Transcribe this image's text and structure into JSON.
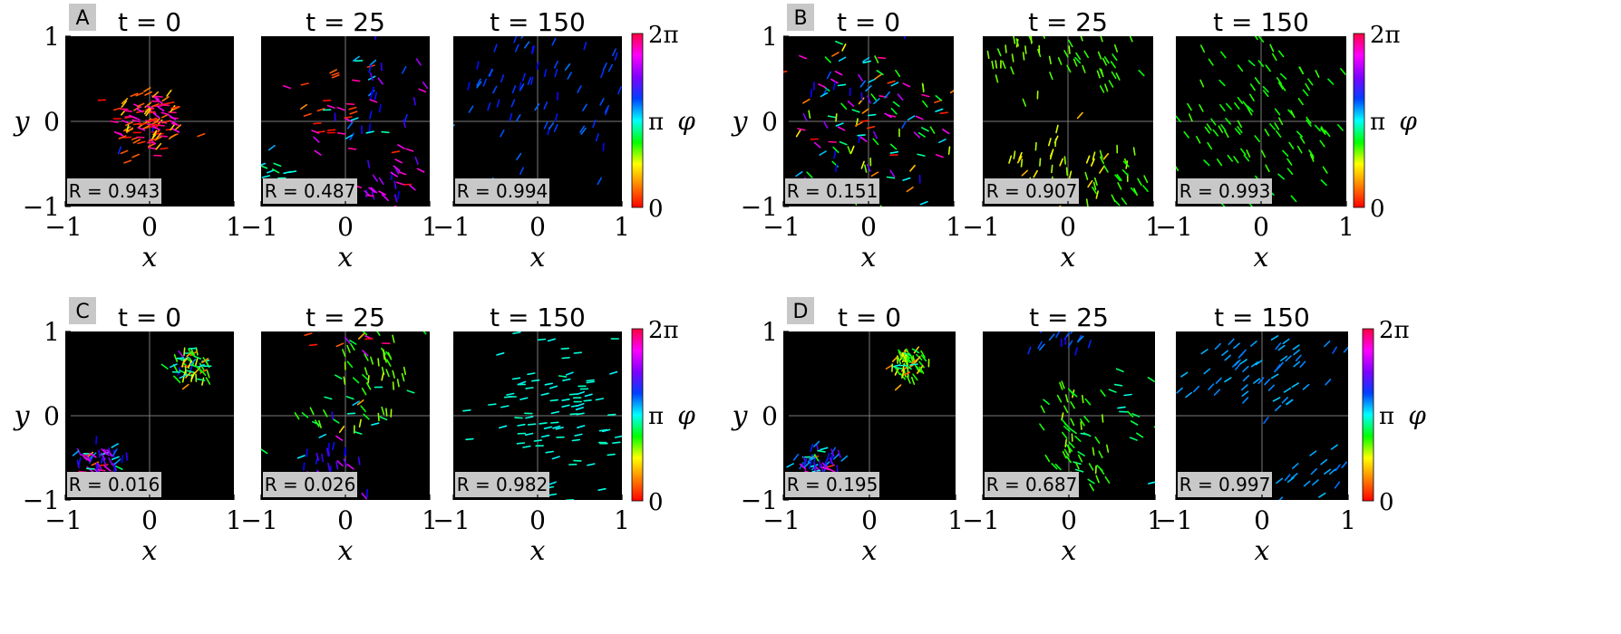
{
  "figure": {
    "colorbar": {
      "symbol": "φ",
      "ticks": [
        "0",
        "π",
        "2π"
      ],
      "stops": [
        "#ff0000",
        "#ff8000",
        "#ffff00",
        "#00ff00",
        "#00ffff",
        "#0040ff",
        "#8000ff",
        "#ff00ff",
        "#ff0040"
      ]
    }
  },
  "chart_data": [
    {
      "type": "scatter",
      "panel_label": "A",
      "xlabel": "x",
      "ylabel": "y",
      "xlim": [
        -1,
        1
      ],
      "ylim": [
        -1,
        1
      ],
      "xticks": [
        "−1",
        "0",
        "1"
      ],
      "yticks": [
        "1",
        "0",
        "−1"
      ],
      "grid": "crosshair at origin",
      "background": "#000000",
      "subplots": [
        {
          "title": "t = 0",
          "R_label": "R = 0.943",
          "R": 0.943,
          "pattern": "cluster",
          "clusters": [
            {
              "cx": 0.0,
              "cy": 0.0,
              "sx": 0.22,
              "sy": 0.22,
              "phase": 0.2,
              "phase_spread": 0.5,
              "n": 120
            }
          ]
        },
        {
          "title": "t = 25",
          "R_label": "R = 0.487",
          "R": 0.487,
          "pattern": "dispersed",
          "clusters": [
            {
              "cx": -0.2,
              "cy": 0.1,
              "sx": 0.2,
              "sy": 0.3,
              "phase": 0.1,
              "phase_spread": 0.3,
              "n": 25
            },
            {
              "cx": 0.4,
              "cy": 0.2,
              "sx": 0.3,
              "sy": 0.5,
              "phase": 4.6,
              "phase_spread": 0.8,
              "n": 45
            },
            {
              "cx": 0.6,
              "cy": -0.7,
              "sx": 0.25,
              "sy": 0.2,
              "phase": 5.6,
              "phase_spread": 0.4,
              "n": 25
            },
            {
              "cx": -0.8,
              "cy": -0.6,
              "sx": 0.12,
              "sy": 0.15,
              "phase": 3.2,
              "phase_spread": 0.3,
              "n": 18
            }
          ]
        },
        {
          "title": "t = 150",
          "R_label": "R = 0.994",
          "R": 0.994,
          "pattern": "band",
          "clusters": [
            {
              "cx": 0.1,
              "cy": 0.35,
              "sx": 0.8,
              "sy": 0.45,
              "phase": 4.3,
              "phase_spread": 0.15,
              "n": 90
            }
          ]
        }
      ]
    },
    {
      "type": "scatter",
      "panel_label": "B",
      "xlabel": "x",
      "ylabel": "y",
      "xlim": [
        -1,
        1
      ],
      "ylim": [
        -1,
        1
      ],
      "xticks": [
        "−1",
        "0",
        "1"
      ],
      "yticks": [
        "1",
        "0",
        "−1"
      ],
      "grid": "crosshair at origin",
      "background": "#000000",
      "subplots": [
        {
          "title": "t = 0",
          "R_label": "R = 0.151",
          "R": 0.151,
          "pattern": "uniform",
          "clusters": [
            {
              "cx": 0.0,
              "cy": 0.0,
              "sx": 0.6,
              "sy": 0.5,
              "phase": 3.14,
              "phase_spread": 3.14,
              "n": 140
            }
          ]
        },
        {
          "title": "t = 25",
          "R_label": "R = 0.907",
          "R": 0.907,
          "pattern": "patches",
          "clusters": [
            {
              "cx": -0.7,
              "cy": 0.7,
              "sx": 0.2,
              "sy": 0.2,
              "phase": 1.7,
              "phase_spread": 0.2,
              "n": 25
            },
            {
              "cx": 0.3,
              "cy": 0.7,
              "sx": 0.3,
              "sy": 0.2,
              "phase": 2.0,
              "phase_spread": 0.2,
              "n": 30
            },
            {
              "cx": -0.2,
              "cy": -0.5,
              "sx": 0.4,
              "sy": 0.25,
              "phase": 1.3,
              "phase_spread": 0.3,
              "n": 45
            },
            {
              "cx": 0.6,
              "cy": -0.7,
              "sx": 0.3,
              "sy": 0.2,
              "phase": 2.1,
              "phase_spread": 0.2,
              "n": 25
            }
          ]
        },
        {
          "title": "t = 150",
          "R_label": "R = 0.993",
          "R": 0.993,
          "pattern": "band",
          "clusters": [
            {
              "cx": 0.0,
              "cy": 0.0,
              "sx": 0.55,
              "sy": 0.6,
              "phase": 2.2,
              "phase_spread": 0.1,
              "n": 120
            }
          ]
        }
      ]
    },
    {
      "type": "scatter",
      "panel_label": "C",
      "xlabel": "x",
      "ylabel": "y",
      "xlim": [
        -1,
        1
      ],
      "ylim": [
        -1,
        1
      ],
      "xticks": [
        "−1",
        "0",
        "1"
      ],
      "yticks": [
        "1",
        "0",
        "−1"
      ],
      "grid": "crosshair at origin",
      "background": "#000000",
      "subplots": [
        {
          "title": "t = 0",
          "R_label": "R = 0.016",
          "R": 0.016,
          "pattern": "two-clusters",
          "clusters": [
            {
              "cx": 0.5,
              "cy": 0.6,
              "sx": 0.12,
              "sy": 0.12,
              "phase": 2.0,
              "phase_spread": 1.2,
              "n": 60
            },
            {
              "cx": -0.55,
              "cy": -0.55,
              "sx": 0.14,
              "sy": 0.12,
              "phase": 5.0,
              "phase_spread": 1.2,
              "n": 60
            }
          ]
        },
        {
          "title": "t = 25",
          "R_label": "R = 0.026",
          "R": 0.026,
          "pattern": "spiral",
          "clusters": [
            {
              "cx": 0.45,
              "cy": 0.5,
              "sx": 0.2,
              "sy": 0.25,
              "phase": 1.9,
              "phase_spread": 0.3,
              "n": 40
            },
            {
              "cx": 0.0,
              "cy": 0.0,
              "sx": 0.3,
              "sy": 0.2,
              "phase": 2.8,
              "phase_spread": 0.8,
              "n": 25
            },
            {
              "cx": -0.2,
              "cy": -0.6,
              "sx": 0.2,
              "sy": 0.25,
              "phase": 4.9,
              "phase_spread": 0.4,
              "n": 35
            },
            {
              "cx": 0.0,
              "cy": 0.9,
              "sx": 0.4,
              "sy": 0.1,
              "phase": 0.6,
              "phase_spread": 1.0,
              "n": 12
            }
          ]
        },
        {
          "title": "t = 150",
          "R_label": "R = 0.982",
          "R": 0.982,
          "pattern": "band",
          "clusters": [
            {
              "cx": 0.25,
              "cy": 0.0,
              "sx": 0.45,
              "sy": 0.65,
              "phase": 3.3,
              "phase_spread": 0.1,
              "n": 110
            }
          ]
        }
      ]
    },
    {
      "type": "scatter",
      "panel_label": "D",
      "xlabel": "x",
      "ylabel": "y",
      "xlim": [
        -1,
        1
      ],
      "ylim": [
        -1,
        1
      ],
      "xticks": [
        "−1",
        "0",
        "1"
      ],
      "yticks": [
        "1",
        "0",
        "−1"
      ],
      "grid": "crosshair at origin",
      "background": "#000000",
      "subplots": [
        {
          "title": "t = 0",
          "R_label": "R = 0.195",
          "R": 0.195,
          "pattern": "two-clusters",
          "clusters": [
            {
              "cx": 0.45,
              "cy": 0.6,
              "sx": 0.1,
              "sy": 0.1,
              "phase": 1.8,
              "phase_spread": 0.8,
              "n": 60
            },
            {
              "cx": -0.6,
              "cy": -0.55,
              "sx": 0.13,
              "sy": 0.1,
              "phase": 4.5,
              "phase_spread": 0.8,
              "n": 55
            }
          ]
        },
        {
          "title": "t = 25",
          "R_label": "R = 0.687",
          "R": 0.687,
          "pattern": "band",
          "clusters": [
            {
              "cx": 0.1,
              "cy": -0.25,
              "sx": 0.2,
              "sy": 0.35,
              "phase": 2.1,
              "phase_spread": 0.3,
              "n": 60
            },
            {
              "cx": -0.2,
              "cy": 0.9,
              "sx": 0.2,
              "sy": 0.08,
              "phase": 4.4,
              "phase_spread": 0.2,
              "n": 15
            },
            {
              "cx": 0.7,
              "cy": 0.0,
              "sx": 0.25,
              "sy": 0.4,
              "phase": 3.0,
              "phase_spread": 0.6,
              "n": 15
            }
          ]
        },
        {
          "title": "t = 150",
          "R_label": "R = 0.997",
          "R": 0.997,
          "pattern": "band",
          "clusters": [
            {
              "cx": 0.0,
              "cy": 0.55,
              "sx": 0.55,
              "sy": 0.3,
              "phase": 3.9,
              "phase_spread": 0.1,
              "n": 70
            },
            {
              "cx": 0.6,
              "cy": -0.7,
              "sx": 0.25,
              "sy": 0.2,
              "phase": 3.9,
              "phase_spread": 0.1,
              "n": 20
            }
          ]
        }
      ]
    }
  ]
}
